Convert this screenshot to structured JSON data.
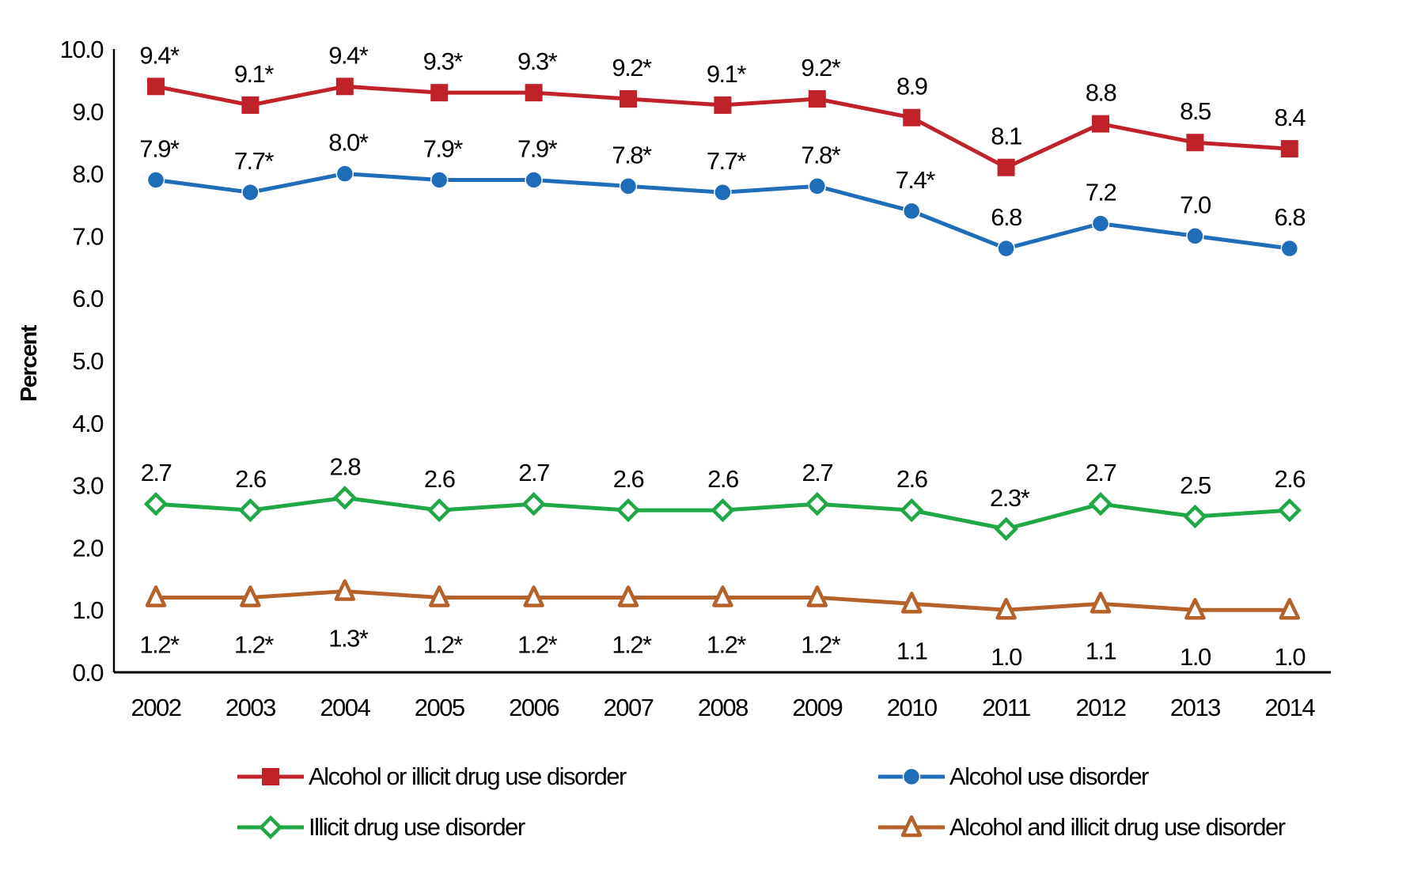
{
  "chart_data": {
    "type": "line",
    "title": "",
    "xlabel": "",
    "ylabel": "Percent",
    "ylim": [
      0,
      10
    ],
    "yticks": [
      "0.0",
      "1.0",
      "2.0",
      "3.0",
      "4.0",
      "5.0",
      "6.0",
      "7.0",
      "8.0",
      "9.0",
      "10.0"
    ],
    "grid": false,
    "legend_position": "bottom",
    "categories": [
      "2002",
      "2003",
      "2004",
      "2005",
      "2006",
      "2007",
      "2008",
      "2009",
      "2010",
      "2011",
      "2012",
      "2013",
      "2014"
    ],
    "series": [
      {
        "name": "Alcohol or illicit drug use disorder",
        "color": "#c0222a",
        "marker": "square",
        "label_pos": "above",
        "values": [
          9.4,
          9.1,
          9.4,
          9.3,
          9.3,
          9.2,
          9.1,
          9.2,
          8.9,
          8.1,
          8.8,
          8.5,
          8.4
        ],
        "labels": [
          "9.4*",
          "9.1*",
          "9.4*",
          "9.3*",
          "9.3*",
          "9.2*",
          "9.1*",
          "9.2*",
          "8.9",
          "8.1",
          "8.8",
          "8.5",
          "8.4"
        ]
      },
      {
        "name": "Alcohol use disorder",
        "color": "#1f6db8",
        "marker": "circle",
        "label_pos": "above",
        "values": [
          7.9,
          7.7,
          8.0,
          7.9,
          7.9,
          7.8,
          7.7,
          7.8,
          7.4,
          6.8,
          7.2,
          7.0,
          6.8
        ],
        "labels": [
          "7.9*",
          "7.7*",
          "8.0*",
          "7.9*",
          "7.9*",
          "7.8*",
          "7.7*",
          "7.8*",
          "7.4*",
          "6.8",
          "7.2",
          "7.0",
          "6.8"
        ]
      },
      {
        "name": "Illicit drug use disorder",
        "color": "#1fa845",
        "marker": "diamond-open",
        "label_pos": "above",
        "values": [
          2.7,
          2.6,
          2.8,
          2.6,
          2.7,
          2.6,
          2.6,
          2.7,
          2.6,
          2.3,
          2.7,
          2.5,
          2.6
        ],
        "labels": [
          "2.7",
          "2.6",
          "2.8",
          "2.6",
          "2.7",
          "2.6",
          "2.6",
          "2.7",
          "2.6",
          "2.3*",
          "2.7",
          "2.5",
          "2.6"
        ]
      },
      {
        "name": "Alcohol and illicit drug use disorder",
        "color": "#b5612a",
        "marker": "triangle-open",
        "label_pos": "below",
        "values": [
          1.2,
          1.2,
          1.3,
          1.2,
          1.2,
          1.2,
          1.2,
          1.2,
          1.1,
          1.0,
          1.1,
          1.0,
          1.0
        ],
        "labels": [
          "1.2*",
          "1.2*",
          "1.3*",
          "1.2*",
          "1.2*",
          "1.2*",
          "1.2*",
          "1.2*",
          "1.1",
          "1.0",
          "1.1",
          "1.0",
          "1.0"
        ]
      }
    ]
  }
}
